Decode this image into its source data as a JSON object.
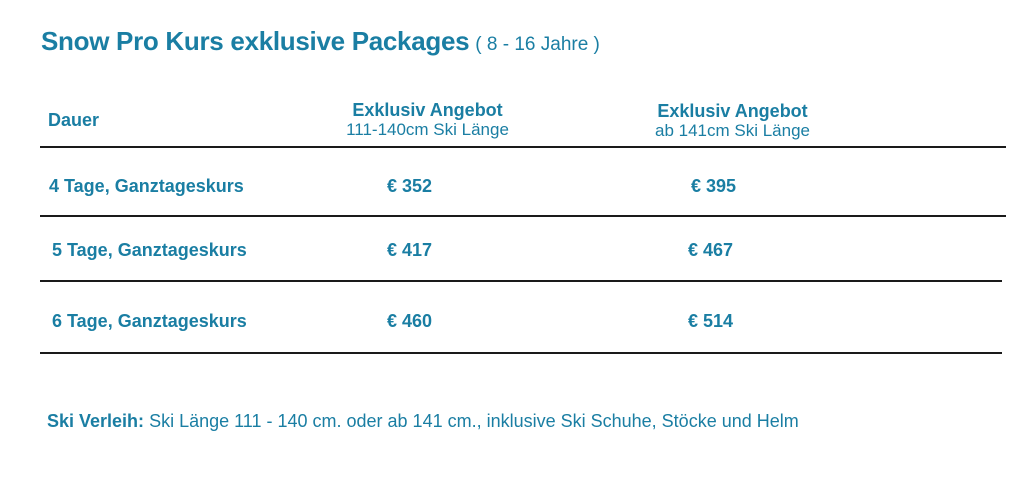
{
  "title": {
    "main": "Snow Pro Kurs exklusive Packages",
    "sub": "( 8 - 16 Jahre )"
  },
  "table": {
    "headers": {
      "duration": "Dauer",
      "col_a_title": "Exklusiv Angebot",
      "col_a_sub": "111-140cm Ski Länge",
      "col_b_title": "Exklusiv Angebot",
      "col_b_sub": "ab 141cm Ski Länge"
    },
    "rows": [
      {
        "label": "4 Tage, Ganztageskurs",
        "price_a": "€ 352",
        "price_b": "€ 395"
      },
      {
        "label": "5 Tage, Ganztageskurs",
        "price_a": "€ 417",
        "price_b": "€ 467"
      },
      {
        "label": "6 Tage, Ganztageskurs",
        "price_a": "€ 460",
        "price_b": "€ 514"
      }
    ]
  },
  "footer": {
    "label": "Ski Verleih:",
    "text": " Ski Länge 111 - 140 cm. oder ab 141 cm., inklusive Ski Schuhe, Stöcke und Helm"
  },
  "colors": {
    "accent": "#1a7ea3",
    "rule": "#1a1a1a"
  }
}
